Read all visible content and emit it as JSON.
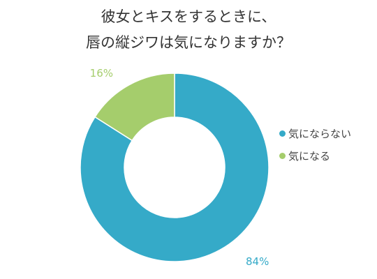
{
  "chart_data": {
    "type": "pie",
    "title_lines": [
      "彼女とキスをするときに、",
      "唇の縦ジワは気になりますか？"
    ],
    "slices": [
      {
        "label": "気にならない",
        "value": 84,
        "display": "84%",
        "color": "#35aac8"
      },
      {
        "label": "気になる",
        "value": 16,
        "display": "16%",
        "color": "#a5cd6c"
      }
    ],
    "donut": true,
    "legend_position": "right"
  }
}
